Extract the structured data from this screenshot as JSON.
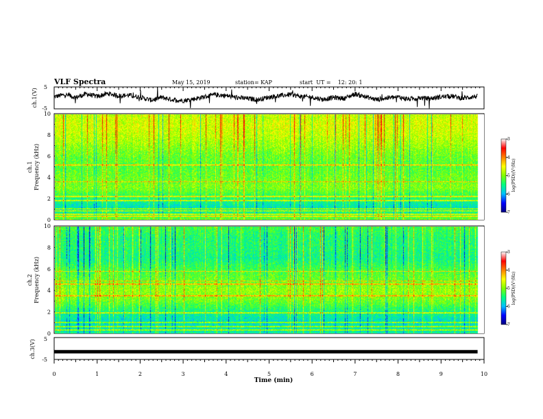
{
  "header": {
    "title": "VLF Spectra",
    "date": "May 15, 2019",
    "station": "station= KAP",
    "start": "start  UT =    12: 20: 1"
  },
  "panels": {
    "ch1_wave_label": "ch.1(V)",
    "ch1_spec_label_a": "ch.1",
    "ch1_spec_label_b": "Frequency  (kHz)",
    "ch2_spec_label_a": "ch.2",
    "ch2_spec_label_b": "Frequency  (kHz)",
    "ch3_wave_label": "ch.3(V)",
    "xlabel": "Time  (min)",
    "colorbar_label": "log(PSD)(V²/Hz)"
  },
  "chart_data": [
    {
      "type": "line",
      "title": "",
      "ylabel": "ch.1(V)",
      "ylim": [
        -5,
        5
      ],
      "yticks": [
        "5",
        "-5"
      ],
      "xlim": [
        0,
        9.85
      ],
      "series": [
        {
          "x": [
            0,
            0.25,
            0.5,
            0.75,
            1.0,
            1.25,
            1.5,
            1.75,
            2.0,
            2.25,
            2.5,
            2.75,
            3.0,
            3.25,
            3.5,
            3.75,
            4.0,
            4.25,
            4.5,
            4.75,
            5.0,
            5.25,
            5.5,
            5.75,
            6.0,
            6.25,
            6.5,
            6.75,
            7.0,
            7.25,
            7.5,
            7.75,
            8.0,
            8.25,
            8.5,
            8.75,
            9.0,
            9.25,
            9.5,
            9.75
          ],
          "values": [
            0.5,
            1.5,
            0.2,
            1.8,
            0.6,
            2.0,
            1.0,
            1.2,
            0.3,
            -1.0,
            0.2,
            -0.8,
            -1.2,
            -0.5,
            0.5,
            1.5,
            1.0,
            0.2,
            -0.3,
            -0.8,
            0.4,
            1.0,
            1.6,
            0.6,
            0.3,
            -0.7,
            0.2,
            -0.2,
            1.8,
            0.5,
            -0.8,
            0.0,
            0.4,
            -0.6,
            0.0,
            -0.3,
            0.5,
            0.8,
            -0.2,
            0.6
          ]
        }
      ]
    },
    {
      "type": "heatmap",
      "title": "",
      "ylabel": "Frequency  (kHz)",
      "ylim": [
        0,
        10
      ],
      "xlim": [
        0,
        10
      ],
      "color_range": [
        -7,
        -3
      ],
      "colorbar_ticks": [
        "-3",
        "-4",
        "-5",
        "-6",
        "-7"
      ],
      "colorbar_label": "log(PSD)(V²/Hz)",
      "freq_bands_khz": [
        0,
        1,
        2,
        3,
        4,
        5,
        6,
        7,
        8,
        9,
        10
      ],
      "mean_log_psd": [
        -4.8,
        -5.6,
        -5.2,
        -4.7,
        -4.8,
        -4.9,
        -4.8,
        -4.6,
        -4.4,
        -4.3,
        -4.4
      ],
      "narrowband_lines_khz": [
        0.3,
        0.5,
        0.8,
        1.0,
        1.8,
        2.2,
        3.6,
        5.2
      ],
      "color_scale": [
        "#000080",
        "#0000ff",
        "#00c0ff",
        "#00ff80",
        "#80ff00",
        "#ffff00",
        "#ff8000",
        "#ff0000",
        "#ffffff"
      ]
    },
    {
      "type": "heatmap",
      "title": "",
      "ylabel": "Frequency  (kHz)",
      "ylim": [
        0,
        10
      ],
      "xlim": [
        0,
        10
      ],
      "color_range": [
        -7,
        -3
      ],
      "colorbar_ticks": [
        "-3",
        "-4",
        "-5",
        "-6",
        "-7"
      ],
      "colorbar_label": "log(PSD)(V²/Hz)",
      "freq_bands_khz": [
        0,
        1,
        2,
        3,
        4,
        5,
        6,
        7,
        8,
        9,
        10
      ],
      "mean_log_psd": [
        -5.4,
        -5.6,
        -5.3,
        -4.8,
        -4.6,
        -4.8,
        -5.0,
        -5.3,
        -5.2,
        -5.2,
        -5.0
      ],
      "narrowband_lines_khz": [
        0.3,
        0.6,
        1.0,
        1.9,
        3.5,
        4.6,
        4.9,
        5.8
      ],
      "color_scale": [
        "#000080",
        "#0000ff",
        "#00c0ff",
        "#00ff80",
        "#80ff00",
        "#ffff00",
        "#ff8000",
        "#ff0000",
        "#ffffff"
      ]
    },
    {
      "type": "line",
      "title": "",
      "ylabel": "ch.3(V)",
      "ylim": [
        -5,
        5
      ],
      "yticks": [
        "5",
        "-5"
      ],
      "xlim": [
        0,
        9.85
      ],
      "xticks": [
        "0",
        "1",
        "2",
        "3",
        "4",
        "5",
        "6",
        "7",
        "8",
        "9",
        "10"
      ],
      "xlabel": "Time  (min)",
      "series": [
        {
          "x": [
            0,
            9.85
          ],
          "values": [
            -1.5,
            -1.5
          ]
        }
      ]
    }
  ]
}
